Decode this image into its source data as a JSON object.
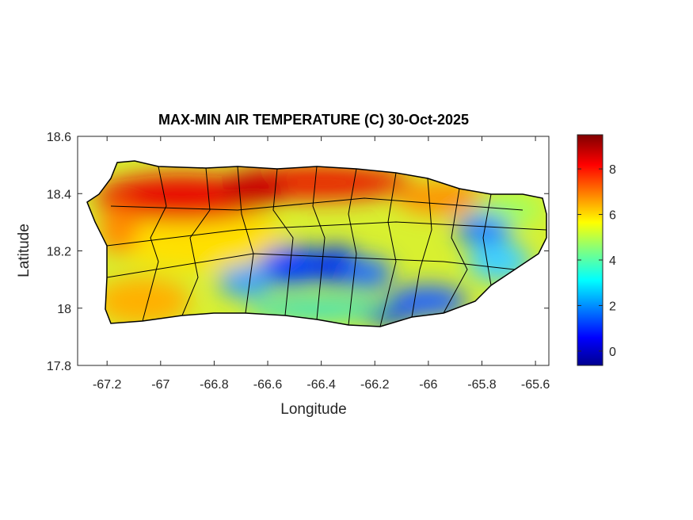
{
  "chart_data": {
    "type": "map",
    "title": "MAX-MIN AIR TEMPERATURE (C) 30-Oct-2025",
    "x_label": "Longitude",
    "y_label": "Latitude",
    "xlim": [
      -67.31,
      -65.55
    ],
    "xticks": [
      -67.2,
      -67,
      -66.8,
      -66.6,
      -66.4,
      -66.2,
      -66,
      -65.8,
      -65.6
    ],
    "ylim": [
      17.8,
      18.6
    ],
    "yticks": [
      17.8,
      18,
      18.2,
      18.4,
      18.6
    ],
    "colorbar": {
      "lim": [
        -0.63,
        9.5
      ],
      "ticks": [
        0,
        2,
        4,
        6,
        8
      ]
    }
  }
}
